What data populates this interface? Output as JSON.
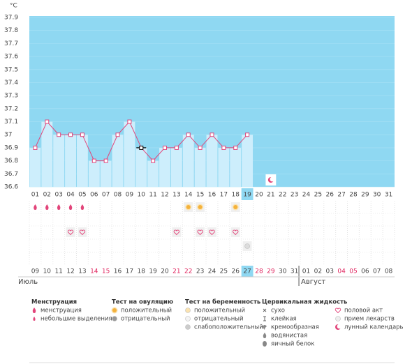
{
  "chart_data": {
    "type": "line",
    "y_unit": "°C",
    "categories": [
      "01",
      "02",
      "03",
      "04",
      "05",
      "06",
      "07",
      "08",
      "09",
      "10",
      "11",
      "12",
      "13",
      "14",
      "15",
      "16",
      "17",
      "18",
      "19",
      "20",
      "21",
      "22",
      "23",
      "24",
      "25",
      "26",
      "27",
      "28",
      "29",
      "30",
      "31"
    ],
    "values": [
      36.9,
      37.1,
      37,
      37,
      37,
      36.8,
      36.8,
      37,
      37.1,
      36.9,
      36.8,
      36.9,
      36.9,
      37,
      36.9,
      37,
      36.9,
      36.9,
      37,
      null,
      null,
      null,
      null,
      null,
      null,
      null,
      null,
      null,
      null,
      null,
      null
    ],
    "ylim": [
      36.6,
      37.9
    ],
    "yticks": [
      36.6,
      36.7,
      36.8,
      36.9,
      37,
      37.1,
      37.2,
      37.3,
      37.4,
      37.5,
      37.6,
      37.7,
      37.8,
      37.9
    ],
    "color": "#e2457a",
    "today": "19",
    "cursor_day": "10"
  },
  "symptoms": {
    "menstruation": [
      "01",
      "02",
      "03",
      "04",
      "05"
    ],
    "ovulation_positive": [
      "14",
      "15",
      "18"
    ],
    "intercourse": [
      "04",
      "05",
      "13",
      "15",
      "16",
      "18"
    ],
    "pregnancy_faint": [
      "19"
    ],
    "lunar": [
      "21"
    ]
  },
  "cycle_dates": [
    {
      "day": "09",
      "weekend": false
    },
    {
      "day": "10",
      "weekend": false
    },
    {
      "day": "11",
      "weekend": false
    },
    {
      "day": "12",
      "weekend": false
    },
    {
      "day": "13",
      "weekend": false
    },
    {
      "day": "14",
      "weekend": true
    },
    {
      "day": "15",
      "weekend": true
    },
    {
      "day": "16",
      "weekend": false
    },
    {
      "day": "17",
      "weekend": false
    },
    {
      "day": "18",
      "weekend": false
    },
    {
      "day": "19",
      "weekend": false
    },
    {
      "day": "20",
      "weekend": false
    },
    {
      "day": "21",
      "weekend": true
    },
    {
      "day": "22",
      "weekend": true
    },
    {
      "day": "23",
      "weekend": false
    },
    {
      "day": "24",
      "weekend": false
    },
    {
      "day": "25",
      "weekend": false
    },
    {
      "day": "26",
      "weekend": false
    },
    {
      "day": "27",
      "weekend": false
    },
    {
      "day": "28",
      "weekend": true
    },
    {
      "day": "29",
      "weekend": true
    },
    {
      "day": "30",
      "weekend": false
    },
    {
      "day": "31",
      "weekend": false
    },
    {
      "day": "01",
      "weekend": false
    },
    {
      "day": "02",
      "weekend": false
    },
    {
      "day": "03",
      "weekend": false
    },
    {
      "day": "04",
      "weekend": true
    },
    {
      "day": "05",
      "weekend": true
    },
    {
      "day": "06",
      "weekend": false
    },
    {
      "day": "07",
      "weekend": false
    },
    {
      "day": "08",
      "weekend": false
    }
  ],
  "months": [
    {
      "label": "Июль",
      "first_date": "09"
    },
    {
      "label": "Август",
      "first_date": "01"
    }
  ],
  "legend": [
    {
      "title": "Менструация",
      "items": [
        "менструация",
        "небольшие выделения"
      ]
    },
    {
      "title": "Тест на овуляцию",
      "items": [
        "положительный",
        "отрицательный"
      ]
    },
    {
      "title": "Тест на беременность",
      "items": [
        "положительный",
        "отрицательный",
        "слабоположительный"
      ]
    },
    {
      "title": "Цервикальная жидкость",
      "items": [
        "сухо",
        "клейкая",
        "кремообразная",
        "водянистая",
        "яичный белок"
      ]
    },
    {
      "items": [
        "половой акт",
        "прием лекарств",
        "лунный календарь"
      ]
    }
  ]
}
